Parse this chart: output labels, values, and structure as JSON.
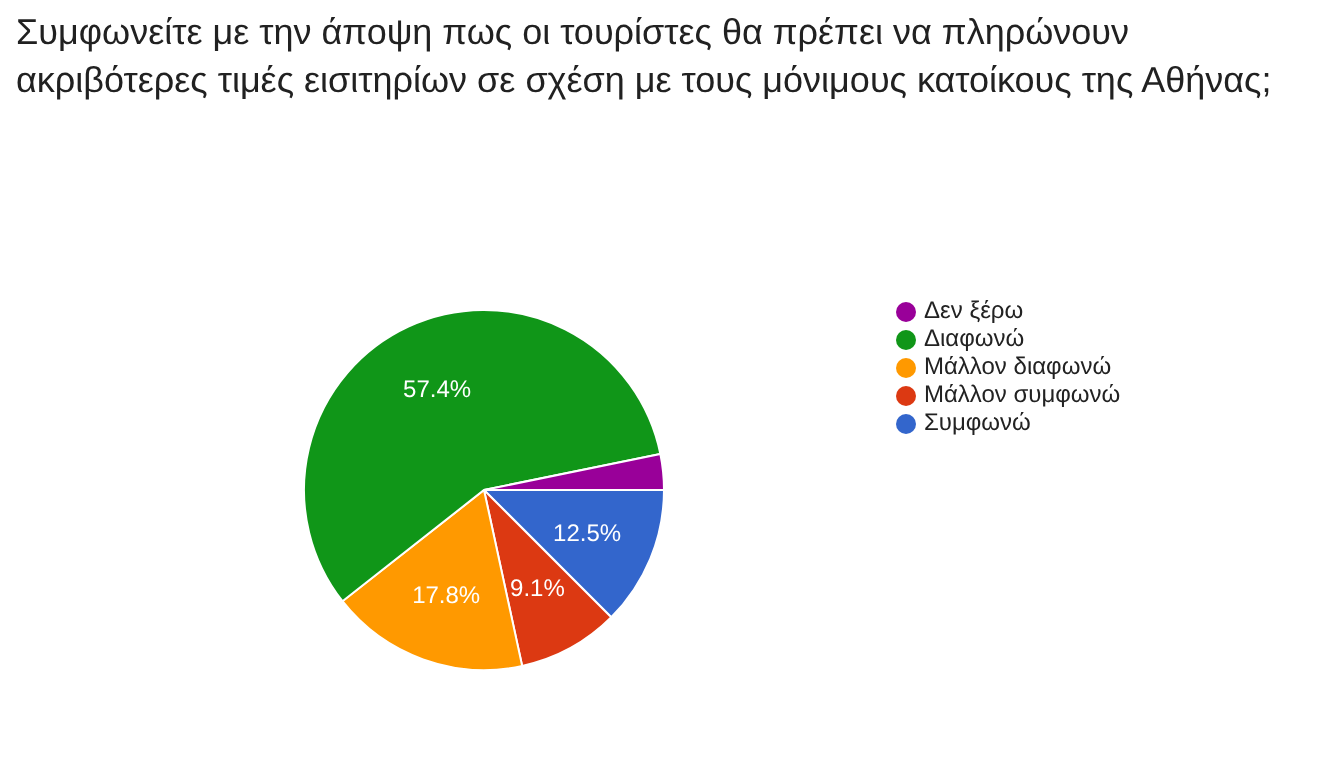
{
  "chart_data": {
    "type": "pie",
    "title": "Συμφωνείτε με την άποψη πως οι τουρίστες θα πρέπει να πληρώνουν ακριβότερες τιμές εισιτηρίων σε σχέση με τους μόνιμους κατοίκους της Αθήνας;",
    "categories": [
      "Συμφωνώ",
      "Μάλλον συμφωνώ",
      "Μάλλον διαφωνώ",
      "Διαφωνώ",
      "Δεν ξέρω"
    ],
    "values": [
      12.5,
      9.1,
      17.8,
      57.4,
      3.2
    ],
    "colors": [
      "#3366cc",
      "#dc3912",
      "#ff9900",
      "#109618",
      "#990099"
    ],
    "value_labels": [
      "12.5%",
      "9.1%",
      "17.8%",
      "57.4%",
      null
    ],
    "legend": "right"
  }
}
